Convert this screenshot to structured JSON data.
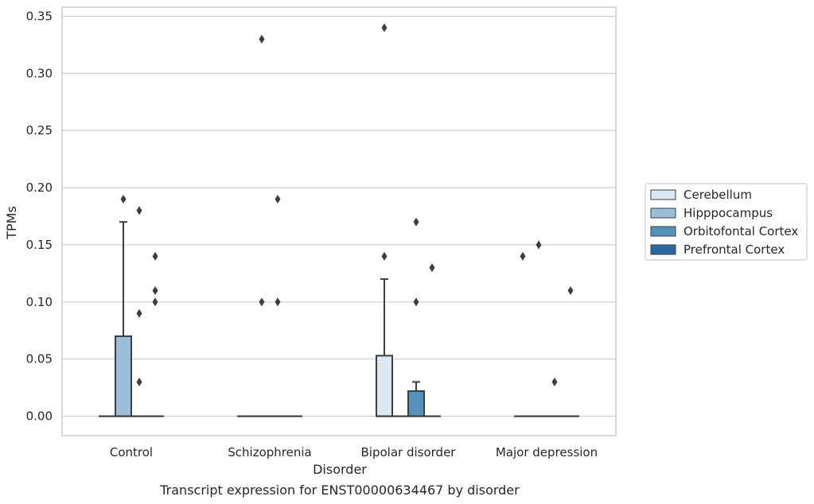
{
  "chart_data": {
    "type": "box",
    "title": "",
    "caption": "Transcript expression for ENST00000634467 by disorder",
    "xlabel": "Disorder",
    "ylabel": "TPMs",
    "ylim": [
      -0.017,
      0.358
    ],
    "yticks": [
      0.0,
      0.05,
      0.1,
      0.15,
      0.2,
      0.25,
      0.3,
      0.35
    ],
    "ytick_labels": [
      "0.00",
      "0.05",
      "0.10",
      "0.15",
      "0.20",
      "0.25",
      "0.30",
      "0.35"
    ],
    "grid": "horizontal",
    "legend_position": "right",
    "categories": [
      "Control",
      "Schizophrenia",
      "Bipolar disorder",
      "Major depression"
    ],
    "series": [
      {
        "name": "Cerebellum",
        "color": "#dce8f3",
        "boxes": [
          {
            "q1": 0,
            "median": 0,
            "q3": 0,
            "whisker_low": 0,
            "whisker_high": 0,
            "outliers": []
          },
          {
            "q1": 0,
            "median": 0,
            "q3": 0,
            "whisker_low": 0,
            "whisker_high": 0,
            "outliers": []
          },
          {
            "q1": 0,
            "median": 0,
            "q3": 0.053,
            "whisker_low": 0,
            "whisker_high": 0.12,
            "outliers": [
              0.14,
              0.34
            ]
          },
          {
            "q1": 0,
            "median": 0,
            "q3": 0,
            "whisker_low": 0,
            "whisker_high": 0,
            "outliers": [
              0.14
            ]
          }
        ]
      },
      {
        "name": "Hipppocampus",
        "color": "#9bbfd8",
        "boxes": [
          {
            "q1": 0,
            "median": 0,
            "q3": 0.07,
            "whisker_low": 0,
            "whisker_high": 0.17,
            "outliers": [
              0.19
            ]
          },
          {
            "q1": 0,
            "median": 0,
            "q3": 0,
            "whisker_low": 0,
            "whisker_high": 0,
            "outliers": [
              0.1,
              0.33
            ]
          },
          {
            "q1": 0,
            "median": 0,
            "q3": 0,
            "whisker_low": 0,
            "whisker_high": 0,
            "outliers": []
          },
          {
            "q1": 0,
            "median": 0,
            "q3": 0,
            "whisker_low": 0,
            "whisker_high": 0,
            "outliers": [
              0.15
            ]
          }
        ]
      },
      {
        "name": "Orbitofontal Cortex",
        "color": "#5492be",
        "boxes": [
          {
            "q1": 0,
            "median": 0,
            "q3": 0,
            "whisker_low": 0,
            "whisker_high": 0,
            "outliers": [
              0.03,
              0.09,
              0.18
            ]
          },
          {
            "q1": 0,
            "median": 0,
            "q3": 0,
            "whisker_low": 0,
            "whisker_high": 0,
            "outliers": [
              0.1,
              0.19
            ]
          },
          {
            "q1": 0,
            "median": 0,
            "q3": 0.022,
            "whisker_low": 0,
            "whisker_high": 0.03,
            "outliers": [
              0.1,
              0.17
            ]
          },
          {
            "q1": 0,
            "median": 0,
            "q3": 0,
            "whisker_low": 0,
            "whisker_high": 0,
            "outliers": [
              0.03
            ]
          }
        ]
      },
      {
        "name": "Prefrontal Cortex",
        "color": "#2a68a5",
        "boxes": [
          {
            "q1": 0,
            "median": 0,
            "q3": 0,
            "whisker_low": 0,
            "whisker_high": 0,
            "outliers": [
              0.1,
              0.11,
              0.14
            ]
          },
          {
            "q1": 0,
            "median": 0,
            "q3": 0,
            "whisker_low": 0,
            "whisker_high": 0,
            "outliers": []
          },
          {
            "q1": 0,
            "median": 0,
            "q3": 0,
            "whisker_low": 0,
            "whisker_high": 0,
            "outliers": [
              0.13
            ]
          },
          {
            "q1": 0,
            "median": 0,
            "q3": 0,
            "whisker_low": 0,
            "whisker_high": 0,
            "outliers": [
              0.11
            ]
          }
        ]
      }
    ]
  },
  "colors": {
    "grid": "#d0d0d0",
    "frame": "#cccccc",
    "box_edge": "#3d3d3d",
    "text": "#262626"
  }
}
